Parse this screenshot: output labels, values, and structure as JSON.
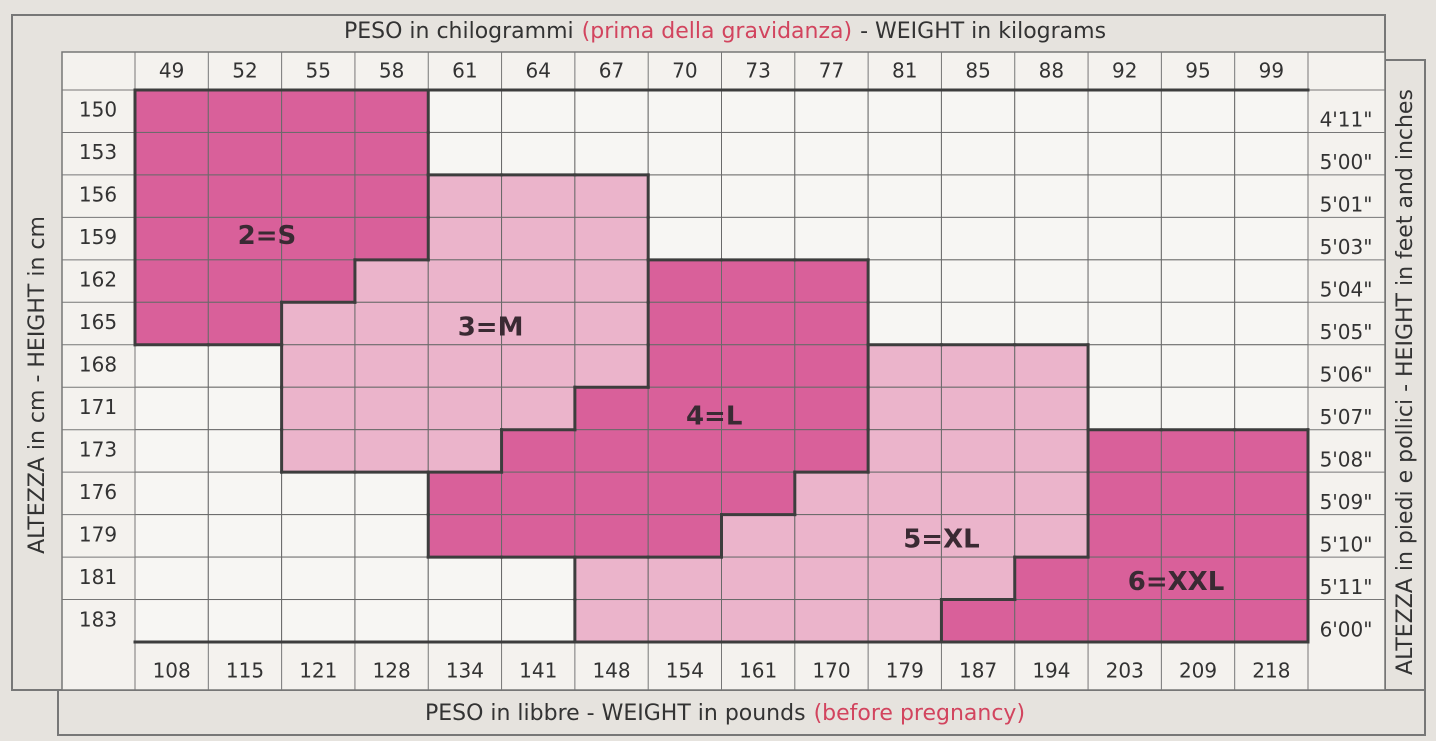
{
  "top_title": {
    "main": "PESO in chilogrammi",
    "note": "(prima della gravidanza)",
    "english": "- WEIGHT in kilograms"
  },
  "bottom_title": {
    "main": "PESO in libbre -  WEIGHT in pounds",
    "note": "(before pregnancy)"
  },
  "left_title": "ALTEZZA in cm  -  HEIGHT in cm",
  "right_title": "ALTEZZA in piedi e pollici - HEIGHT in feet and inches",
  "kilograms": [
    "49",
    "52",
    "55",
    "58",
    "61",
    "64",
    "67",
    "70",
    "73",
    "77",
    "81",
    "85",
    "88",
    "92",
    "95",
    "99"
  ],
  "pounds": [
    "108",
    "115",
    "121",
    "128",
    "134",
    "141",
    "148",
    "154",
    "161",
    "170",
    "179",
    "187",
    "194",
    "203",
    "209",
    "218"
  ],
  "centimeters": [
    "150",
    "153",
    "156",
    "159",
    "162",
    "165",
    "168",
    "171",
    "173",
    "176",
    "179",
    "181",
    "183"
  ],
  "feet_inches": [
    "4'11\"",
    "5'00\"",
    "5'01\"",
    "5'03\"",
    "5'04\"",
    "5'05\"",
    "5'06\"",
    "5'07\"",
    "5'08\"",
    "5'09\"",
    "5'10\"",
    "5'11\"",
    "6'00\""
  ],
  "sizes": [
    {
      "label": "2=S",
      "color": "#d9609a"
    },
    {
      "label": "3=M",
      "color": "#ebb4cb"
    },
    {
      "label": "4=L",
      "color": "#d9609a"
    },
    {
      "label": "5=XL",
      "color": "#ebb4cb"
    },
    {
      "label": "6=XXL",
      "color": "#d9609a"
    }
  ],
  "size_grid": [
    [
      0,
      0,
      0,
      0,
      null,
      null,
      null,
      null,
      null,
      null,
      null,
      null,
      null,
      null,
      null,
      null
    ],
    [
      0,
      0,
      0,
      0,
      null,
      null,
      null,
      null,
      null,
      null,
      null,
      null,
      null,
      null,
      null,
      null
    ],
    [
      0,
      0,
      0,
      0,
      1,
      1,
      1,
      null,
      null,
      null,
      null,
      null,
      null,
      null,
      null,
      null
    ],
    [
      0,
      0,
      0,
      0,
      1,
      1,
      1,
      null,
      null,
      null,
      null,
      null,
      null,
      null,
      null,
      null
    ],
    [
      0,
      0,
      0,
      1,
      1,
      1,
      1,
      2,
      2,
      2,
      null,
      null,
      null,
      null,
      null,
      null
    ],
    [
      0,
      0,
      1,
      1,
      1,
      1,
      1,
      2,
      2,
      2,
      null,
      null,
      null,
      null,
      null,
      null
    ],
    [
      null,
      null,
      1,
      1,
      1,
      1,
      1,
      2,
      2,
      2,
      3,
      3,
      3,
      null,
      null,
      null
    ],
    [
      null,
      null,
      1,
      1,
      1,
      1,
      2,
      2,
      2,
      2,
      3,
      3,
      3,
      null,
      null,
      null
    ],
    [
      null,
      null,
      1,
      1,
      1,
      2,
      2,
      2,
      2,
      2,
      3,
      3,
      3,
      4,
      4,
      4
    ],
    [
      null,
      null,
      null,
      null,
      2,
      2,
      2,
      2,
      2,
      3,
      3,
      3,
      3,
      4,
      4,
      4
    ],
    [
      null,
      null,
      null,
      null,
      2,
      2,
      2,
      2,
      3,
      3,
      3,
      3,
      3,
      4,
      4,
      4
    ],
    [
      null,
      null,
      null,
      null,
      null,
      null,
      3,
      3,
      3,
      3,
      3,
      3,
      4,
      4,
      4,
      4
    ],
    [
      null,
      null,
      null,
      null,
      null,
      null,
      3,
      3,
      3,
      3,
      3,
      4,
      4,
      4,
      4,
      4
    ]
  ]
}
